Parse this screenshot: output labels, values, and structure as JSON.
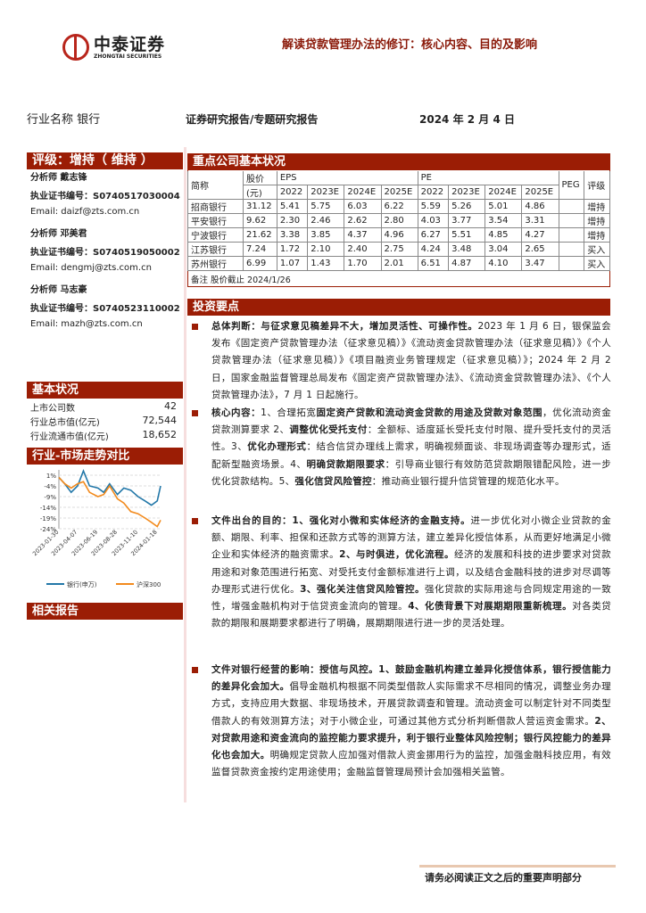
{
  "header": {
    "logo_cn": "中泰证券",
    "logo_en": "ZHONGTAI SECURITIES",
    "title": "解读贷款管理办法的修订：核心内容、目的及影响",
    "industry": "行业名称  银行",
    "report_type": "证券研究报告/专题研究报告",
    "date": "2024 年 2 月 4 日"
  },
  "sidebar": {
    "rating": "评级：增持（  维持  ）",
    "analysts": [
      {
        "name": "分析师 戴志锋",
        "cert": "执业证书编号：S0740517030004",
        "email": "Email:  daizf@zts.com.cn"
      },
      {
        "name": "分析师 邓美君",
        "cert": "执业证书编号：S0740519050002",
        "email": "Email:  dengmj@zts.com.cn"
      },
      {
        "name": "分析师 马志豪",
        "cert": "执业证书编号：S0740523110002",
        "email": "Email:     mazh@zts.com.cn"
      }
    ],
    "basic_title": "基本状况",
    "basic": [
      {
        "label": "上市公司数",
        "value": "42"
      },
      {
        "label": "行业总市值(亿元)",
        "value": "72,544"
      },
      {
        "label": "行业流通市值(亿元)",
        "value": "18,652"
      }
    ],
    "trend_title": "行业-市场走势对比",
    "related_title": "相关报告"
  },
  "chart_data": {
    "type": "line",
    "ylim": [
      -24,
      1
    ],
    "yticks": [
      "1%",
      "-4%",
      "-9%",
      "-14%",
      "-19%",
      "-24%"
    ],
    "xticks": [
      "2023-01-30",
      "2023-04-07",
      "2023-06-19",
      "2023-08-28",
      "2023-11-10",
      "2024-01-18"
    ],
    "x": [
      "2023-01-30",
      "2023-02-20",
      "2023-03-15",
      "2023-04-07",
      "2023-04-28",
      "2023-05-20",
      "2023-06-19",
      "2023-07-10",
      "2023-07-31",
      "2023-08-28",
      "2023-09-20",
      "2023-10-15",
      "2023-11-10",
      "2023-12-05",
      "2023-12-28",
      "2024-01-18",
      "2024-01-30"
    ],
    "series": [
      {
        "name": "银行(申万)",
        "color": "#2277a8",
        "values": [
          0,
          -3,
          -7,
          -4,
          3,
          -4,
          -5,
          -7,
          -3,
          -8,
          -5,
          -6,
          -9,
          -11,
          -13,
          -11,
          -4
        ]
      },
      {
        "name": "沪深300",
        "color": "#f28a1c",
        "values": [
          0,
          -3,
          -5,
          -3,
          -2,
          -7,
          -9,
          -8,
          -4,
          -10,
          -12,
          -16,
          -17,
          -19,
          -21,
          -23,
          -20
        ]
      }
    ]
  },
  "companies": {
    "title": "重点公司基本状况",
    "headers": {
      "name": "简称",
      "price": "股价",
      "price_unit": "(元)",
      "eps": "EPS",
      "pe": "PE",
      "peg": "PEG",
      "rating": "评级",
      "years": [
        "2022",
        "2023E",
        "2024E",
        "2025E"
      ]
    },
    "rows": [
      [
        "招商银行",
        "31.12",
        "5.41",
        "5.75",
        "6.03",
        "6.22",
        "5.59",
        "5.26",
        "5.01",
        "4.86",
        "",
        "增持"
      ],
      [
        "平安银行",
        "9.62",
        "2.30",
        "2.46",
        "2.62",
        "2.80",
        "4.03",
        "3.77",
        "3.54",
        "3.31",
        "",
        "增持"
      ],
      [
        "宁波银行",
        "21.62",
        "3.38",
        "3.85",
        "4.37",
        "4.96",
        "6.27",
        "5.51",
        "4.85",
        "4.27",
        "",
        "增持"
      ],
      [
        "江苏银行",
        "7.24",
        "1.72",
        "2.10",
        "2.40",
        "2.75",
        "4.24",
        "3.48",
        "3.04",
        "2.65",
        "",
        "买入"
      ],
      [
        "苏州银行",
        "6.99",
        "1.07",
        "1.43",
        "1.70",
        "2.01",
        "6.51",
        "4.87",
        "4.10",
        "3.47",
        "",
        "买入"
      ]
    ],
    "note": "备注 股价截止 2024/1/26"
  },
  "invest": {
    "title": "投资要点",
    "paragraphs": [
      [
        {
          "b": true,
          "t": "总体判断：与征求意见稿差异不大，增加灵活性、可操作性。"
        },
        {
          "b": false,
          "t": "2023 年 1 月 6 日，银保监会发布《固定资产贷款管理办法（征求意见稿）》《流动资金贷款管理办法（征求意见稿）》《个人贷款管理办法（征求意见稿）》《项目融资业务管理规定（征求意见稿）》；2024 年 2 月 2 日，国家金融监督管理总局发布《固定资产贷款管理办法》、《流动资金贷款管理办法》、《个人贷款管理办法》，7 月 1 日起施行。"
        }
      ],
      [
        {
          "b": true,
          "t": "核心内容："
        },
        {
          "b": false,
          "t": "1、合理拓宽"
        },
        {
          "b": true,
          "t": "固定资产贷款和流动资金贷款的用途及贷款对象范围"
        },
        {
          "b": false,
          "t": "，优化流动资金贷款测算要求 2、"
        },
        {
          "b": true,
          "t": "调整优化受托支付"
        },
        {
          "b": false,
          "t": "：全额标、适度延长受托支付时限、提升受托支付的灵活性。3、"
        },
        {
          "b": true,
          "t": "优化办理形式"
        },
        {
          "b": false,
          "t": "：结合信贷办理线上需求，明确视频面谈、非现场调查等办理形式，适配新型融资场景。4、"
        },
        {
          "b": true,
          "t": "明确贷款期限要求"
        },
        {
          "b": false,
          "t": "：引导商业银行有效防范贷款期限错配风险，进一步优化贷款结构。5、"
        },
        {
          "b": true,
          "t": "强化信贷风险管控"
        },
        {
          "b": false,
          "t": "：推动商业银行提升信贷管理的规范化水平。"
        }
      ],
      [
        {
          "b": true,
          "t": "文件出台的目的：1、强化对小微和实体经济的金融支持。"
        },
        {
          "b": false,
          "t": "进一步优化对小微企业贷款的金额、期限、利率、担保和还款方式等的测算方法，建立差异化授信体系，从而更好地满足小微企业和实体经济的融资需求。"
        },
        {
          "b": true,
          "t": "2、与时俱进，优化流程。"
        },
        {
          "b": false,
          "t": "经济的发展和科技的进步要求对贷款用途和对象范围进行拓宽、对受托支付金额标准进行上调，以及结合金融科技的进步对尽调等办理形式进行优化。"
        },
        {
          "b": true,
          "t": "3、强化关注信贷风险管控。"
        },
        {
          "b": false,
          "t": "强化贷款的实际用途与合同规定用途的一致性，增强金融机构对于信贷资金流向的管理。"
        },
        {
          "b": true,
          "t": "4、化债背景下对展期期限重新梳理。"
        },
        {
          "b": false,
          "t": "对各类贷款的期限和展期要求都进行了明确，展期期限进行进一步的灵活处理。"
        }
      ],
      [
        {
          "b": true,
          "t": "文件对银行经营的影响：授信与风控。1、鼓励金融机构建立差异化授信体系，银行授信能力的差异化会加大。"
        },
        {
          "b": false,
          "t": "倡导金融机构根据不同类型借款人实际需求不尽相同的情况，调整业务办理方式，支持应用大数据、非现场技术，开展贷款调查和管理。流动资金可以制定针对不同类型借款人的有效测算方法；对于小微企业，可通过其他方式分析判断借款人营运资金需求。"
        },
        {
          "b": true,
          "t": "2、对贷款用途和资金流向的监控能力要求提升，利于银行业整体风险控制；银行风控能力的差异化也会加大。"
        },
        {
          "b": false,
          "t": "明确规定贷款人应加强对借款人资金挪用行为的监控，加强金融科技应用，有效监督贷款资金按约定用途使用；金融监督管理局预计会加强相关监管。"
        }
      ]
    ]
  },
  "footer": "请务必阅读正文之后的重要声明部分"
}
